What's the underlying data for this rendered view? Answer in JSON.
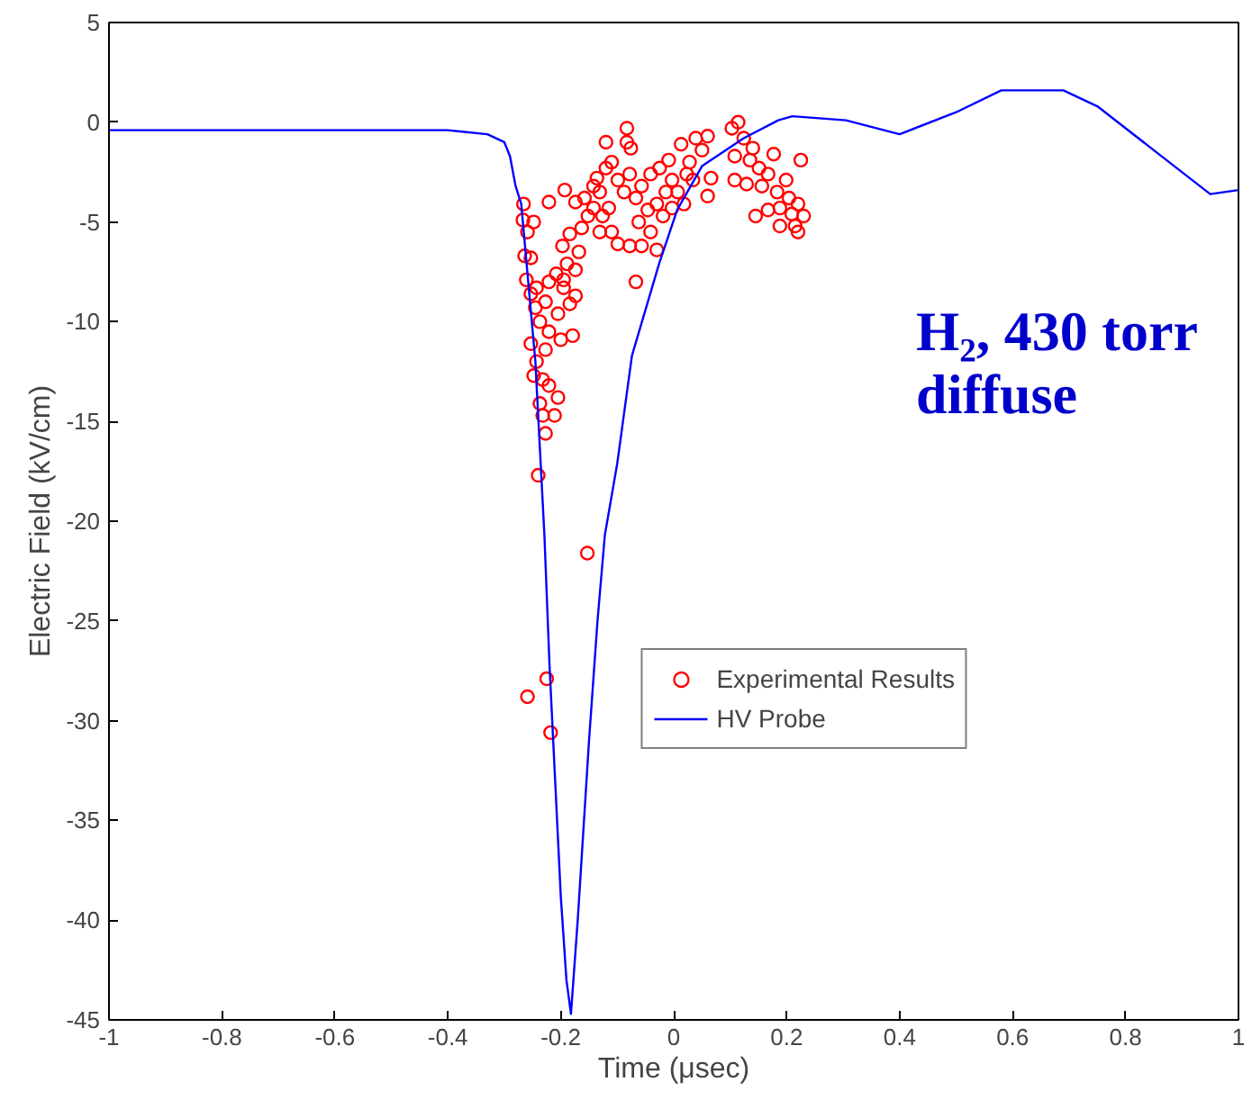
{
  "chart_data": {
    "type": "scatter",
    "xlabel": "Time (μsec)",
    "ylabel": "Electric Field (kV/cm)",
    "xlim": [
      -1,
      1
    ],
    "ylim": [
      -45,
      5
    ],
    "xticks": [
      -1,
      -0.8,
      -0.6,
      -0.4,
      -0.2,
      0,
      0.2,
      0.4,
      0.6,
      0.8,
      1
    ],
    "yticks": [
      -45,
      -40,
      -35,
      -30,
      -25,
      -20,
      -15,
      -10,
      -5,
      0,
      5
    ],
    "grid": false,
    "legend": "bottom right",
    "annotations": [
      "H₂, 430 torr\ndiffuse"
    ],
    "series": [
      {
        "name": "Experimental Results",
        "marker": "circle",
        "color": "#ff0000",
        "x": [
          -0.266,
          -0.267,
          -0.259,
          -0.248,
          -0.264,
          -0.253,
          -0.261,
          -0.253,
          -0.243,
          -0.245,
          -0.237,
          -0.253,
          -0.243,
          -0.248,
          -0.232,
          -0.221,
          -0.237,
          -0.232,
          -0.227,
          -0.24,
          -0.211,
          -0.205,
          -0.227,
          -0.221,
          -0.2,
          -0.179,
          -0.227,
          -0.221,
          -0.208,
          -0.195,
          -0.184,
          -0.174,
          -0.189,
          -0.197,
          -0.184,
          -0.168,
          -0.163,
          -0.152,
          -0.158,
          -0.142,
          -0.131,
          -0.136,
          -0.12,
          -0.11,
          -0.099,
          -0.088,
          -0.078,
          -0.083,
          -0.083,
          -0.076,
          -0.12,
          -0.067,
          -0.057,
          -0.046,
          -0.041,
          -0.03,
          -0.025,
          -0.014,
          -0.003,
          -0.009,
          0.007,
          0.018,
          0.023,
          0.013,
          0.028,
          0.039,
          0.05,
          0.06,
          0.034,
          0.066,
          0.06,
          -0.11,
          -0.099,
          -0.078,
          -0.057,
          -0.041,
          -0.03,
          -0.067,
          -0.131,
          -0.115,
          -0.174,
          -0.193,
          -0.221,
          0.103,
          0.114,
          0.124,
          0.14,
          0.108,
          0.135,
          0.151,
          0.156,
          0.167,
          0.177,
          0.183,
          0.188,
          0.199,
          0.204,
          0.209,
          0.215,
          0.22,
          0.225,
          0.22,
          0.23,
          0.188,
          0.167,
          0.145,
          0.129,
          0.108,
          -0.142,
          -0.126,
          -0.062,
          -0.003,
          -0.019,
          -0.174,
          -0.205,
          -0.195,
          -0.153,
          -0.225,
          -0.259,
          -0.218
        ],
        "values": [
          -4.1,
          -4.9,
          -5.5,
          -5.0,
          -6.7,
          -6.8,
          -7.9,
          -8.6,
          -8.3,
          -9.3,
          -10.0,
          -11.1,
          -12.0,
          -12.7,
          -12.9,
          -13.2,
          -14.1,
          -14.7,
          -15.6,
          -17.7,
          -14.7,
          -13.8,
          -11.4,
          -10.5,
          -10.9,
          -10.7,
          -9.0,
          -8.0,
          -7.6,
          -8.3,
          -9.1,
          -8.7,
          -7.1,
          -6.2,
          -5.6,
          -6.5,
          -5.3,
          -4.7,
          -3.8,
          -4.3,
          -3.5,
          -2.8,
          -2.3,
          -2.0,
          -2.9,
          -3.5,
          -2.6,
          -0.3,
          -1.0,
          -1.3,
          -1.0,
          -3.8,
          -3.2,
          -4.4,
          -2.6,
          -4.1,
          -2.3,
          -3.5,
          -2.9,
          -1.9,
          -3.5,
          -4.1,
          -2.6,
          -1.1,
          -2.0,
          -0.8,
          -1.4,
          -0.7,
          -2.9,
          -2.8,
          -3.7,
          -5.5,
          -6.1,
          -6.2,
          -6.2,
          -5.5,
          -6.4,
          -8.0,
          -5.5,
          -4.3,
          -4.0,
          -3.4,
          -4.0,
          -0.3,
          0.0,
          -0.8,
          -1.3,
          -1.7,
          -1.9,
          -2.3,
          -3.2,
          -2.6,
          -1.6,
          -3.5,
          -4.3,
          -2.9,
          -3.8,
          -4.6,
          -5.2,
          -4.1,
          -1.9,
          -5.5,
          -4.7,
          -5.2,
          -4.4,
          -4.7,
          -3.1,
          -2.9,
          -3.2,
          -4.7,
          -5.0,
          -4.3,
          -4.7,
          -7.4,
          -9.6,
          -7.9,
          -21.6,
          -27.9,
          -28.8,
          -30.6
        ]
      },
      {
        "name": "HV Probe",
        "type": "line",
        "marker": "none",
        "line_style": "solid",
        "color": "#0000ff",
        "x": [
          -1,
          -0.6,
          -0.4,
          -0.33,
          -0.3,
          -0.29,
          -0.28,
          -0.27,
          -0.245,
          -0.229,
          -0.22,
          -0.2,
          -0.19,
          -0.182,
          -0.17,
          -0.15,
          -0.135,
          -0.122,
          -0.1,
          -0.074,
          -0.026,
          0.006,
          0.05,
          0.124,
          0.185,
          0.21,
          0.305,
          0.4,
          0.5,
          0.58,
          0.69,
          0.75,
          0.85,
          0.95,
          1
        ],
        "values": [
          -0.4,
          -0.4,
          -0.4,
          -0.6,
          -1.0,
          -1.7,
          -3.2,
          -4.1,
          -12,
          -20.7,
          -27.2,
          -38.8,
          -43,
          -44.7,
          -40,
          -31,
          -25,
          -20.7,
          -17.1,
          -11.7,
          -7.1,
          -4.4,
          -2.2,
          -0.8,
          0.1,
          0.3,
          0.1,
          -0.6,
          0.5,
          1.6,
          1.6,
          0.8,
          -1.4,
          -3.6,
          -3.4
        ]
      }
    ]
  }
}
